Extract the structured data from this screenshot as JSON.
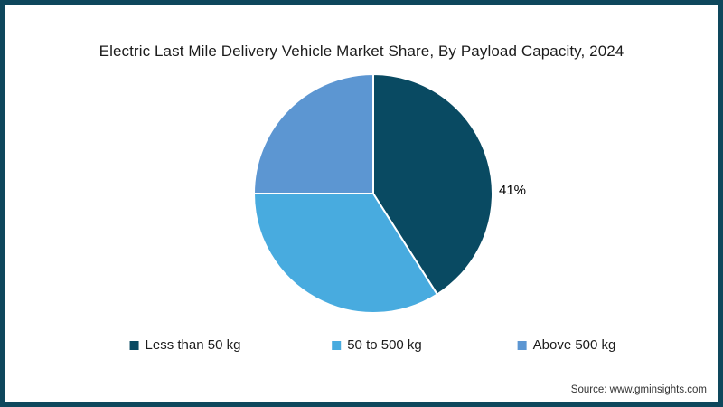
{
  "window": {
    "background": "#ffffff",
    "border_color": "#0e475c"
  },
  "chart_data": {
    "type": "pie",
    "title": "Electric Last Mile Delivery Vehicle Market Share, By Payload Capacity, 2024",
    "unit": "%",
    "categories": [
      "Less than 50 kg",
      "50 to 500 kg",
      "Above 500 kg"
    ],
    "values": [
      41,
      34,
      25
    ],
    "colors": [
      "#094a62",
      "#48abdf",
      "#5c96d2"
    ],
    "data_labels": [
      "41%",
      "",
      ""
    ],
    "start_angle_deg": 0,
    "direction": "clockwise",
    "slice_border_color": "#ffffff",
    "legend_position": "bottom"
  },
  "footer": {
    "source": "Source: www.gminsights.com"
  }
}
